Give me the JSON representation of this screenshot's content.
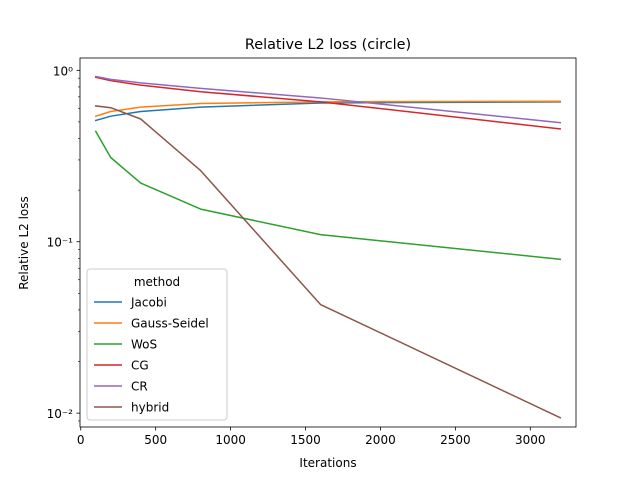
{
  "chart_data": {
    "type": "line",
    "title": "Relative L2 loss (circle)",
    "xlabel": "Iterations",
    "ylabel": "Relative L2 loss",
    "xlim": [
      -5,
      3305
    ],
    "ylim": [
      0.0083,
      1.18
    ],
    "yscale": "log",
    "grid": false,
    "legend_position": "lower-left",
    "legend_title": "method",
    "x_ticks": [
      0,
      500,
      1000,
      1500,
      2000,
      2500,
      3000
    ],
    "x_tick_labels": [
      "0",
      "500",
      "1000",
      "1500",
      "2000",
      "2500",
      "3000"
    ],
    "y_major_ticks": [
      0.01,
      0.1,
      1
    ],
    "y_tick_labels": [
      "10⁻²",
      "10⁻¹",
      "10⁰"
    ],
    "series": [
      {
        "name": "Jacobi",
        "color": "#1f77b4",
        "x": [
          100,
          200,
          400,
          800,
          1600,
          3200
        ],
        "y": [
          0.51,
          0.54,
          0.575,
          0.61,
          0.645,
          0.655
        ]
      },
      {
        "name": "Gauss-Seidel",
        "color": "#ff7f0e",
        "x": [
          100,
          200,
          400,
          800,
          1600,
          3200
        ],
        "y": [
          0.54,
          0.575,
          0.61,
          0.64,
          0.655,
          0.66
        ]
      },
      {
        "name": "WoS",
        "color": "#2ca02c",
        "x": [
          100,
          200,
          400,
          800,
          1600,
          3200
        ],
        "y": [
          0.44,
          0.31,
          0.22,
          0.155,
          0.11,
          0.079
        ]
      },
      {
        "name": "CG",
        "color": "#d62728",
        "x": [
          100,
          200,
          400,
          800,
          1600,
          3200
        ],
        "y": [
          0.91,
          0.87,
          0.82,
          0.75,
          0.655,
          0.455
        ]
      },
      {
        "name": "CR",
        "color": "#9467bd",
        "x": [
          100,
          200,
          400,
          800,
          1600,
          3200
        ],
        "y": [
          0.92,
          0.885,
          0.845,
          0.785,
          0.69,
          0.495
        ]
      },
      {
        "name": "hybrid",
        "color": "#8c564b",
        "x": [
          100,
          200,
          400,
          800,
          1600,
          3200
        ],
        "y": [
          0.62,
          0.605,
          0.52,
          0.26,
          0.043,
          0.0094
        ]
      }
    ]
  }
}
